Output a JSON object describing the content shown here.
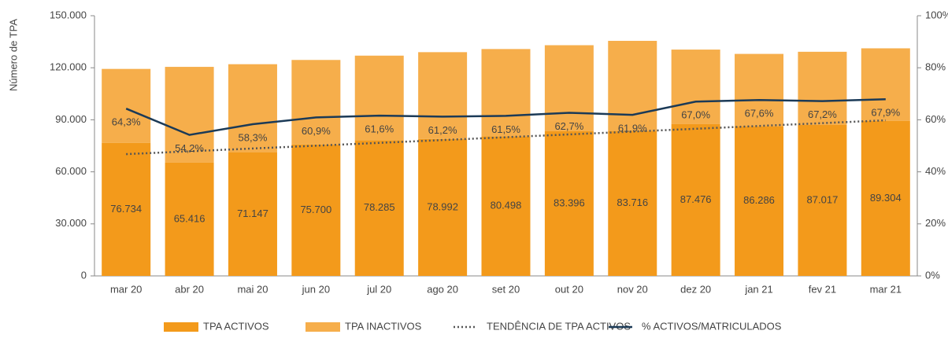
{
  "chart_data": {
    "type": "bar",
    "categories": [
      "mar 20",
      "abr 20",
      "mai 20",
      "jun 20",
      "jul 20",
      "ago 20",
      "set 20",
      "out 20",
      "nov 20",
      "dez 20",
      "jan 21",
      "fev 21",
      "mar 21"
    ],
    "ylabel": "Número de TPA",
    "ylim": [
      0,
      150000
    ],
    "yticks": [
      {
        "value": 0,
        "label": "0"
      },
      {
        "value": 30000,
        "label": "30.000"
      },
      {
        "value": 60000,
        "label": "60.000"
      },
      {
        "value": 90000,
        "label": "90.000"
      },
      {
        "value": 120000,
        "label": "120.000"
      },
      {
        "value": 150000,
        "label": "150.000"
      }
    ],
    "y2lim": [
      0,
      100
    ],
    "y2ticks": [
      {
        "value": 0,
        "label": "0%"
      },
      {
        "value": 20,
        "label": "20%"
      },
      {
        "value": 40,
        "label": "40%"
      },
      {
        "value": 60,
        "label": "60%"
      },
      {
        "value": 80,
        "label": "80%"
      },
      {
        "value": 100,
        "label": "100%"
      }
    ],
    "series": [
      {
        "name": "TPA ACTIVOS",
        "type": "bar",
        "color": "#f39a1b",
        "values": [
          76734,
          65416,
          71147,
          75700,
          78285,
          78992,
          80498,
          83396,
          83716,
          87476,
          86286,
          87017,
          89304
        ],
        "value_labels": [
          "76.734",
          "65.416",
          "71.147",
          "75.700",
          "78.285",
          "78.992",
          "80.498",
          "83.396",
          "83.716",
          "87.476",
          "86.286",
          "87.017",
          "89.304"
        ]
      },
      {
        "name": "TPA INACTIVOS",
        "type": "bar",
        "color": "#f6ae4b",
        "values": [
          42600,
          55100,
          50900,
          48800,
          48700,
          50000,
          50300,
          49600,
          51800,
          43000,
          41700,
          42200,
          41900
        ]
      },
      {
        "name": "TENDÊNCIA DE TPA ACTIVOS",
        "type": "trend",
        "color": "#555555",
        "values": [
          70200,
          71825,
          73450,
          75075,
          76700,
          78325,
          79950,
          81575,
          83200,
          84825,
          86450,
          88075,
          89700
        ]
      },
      {
        "name": "% ACTIVOS/MATRICULADOS",
        "type": "line",
        "axis": "y2",
        "color": "#1b3a57",
        "values": [
          64.3,
          54.2,
          58.3,
          60.9,
          61.6,
          61.2,
          61.5,
          62.7,
          61.9,
          67.0,
          67.6,
          67.2,
          67.9
        ],
        "value_labels": [
          "64,3%",
          "54,2%",
          "58,3%",
          "60,9%",
          "61,6%",
          "61,2%",
          "61,5%",
          "62,7%",
          "61,9%",
          "67,0%",
          "67,6%",
          "67,2%",
          "67,9%"
        ]
      }
    ]
  }
}
